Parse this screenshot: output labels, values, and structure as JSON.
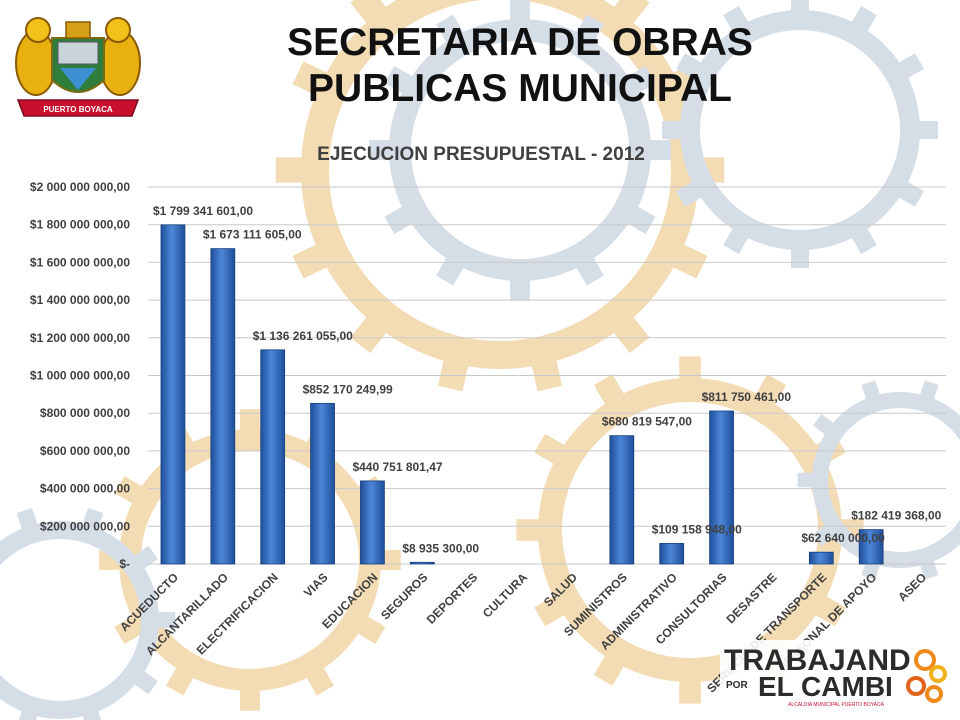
{
  "header": {
    "line1": "SECRETARIA DE OBRAS",
    "line2": "PUBLICAS MUNICIPAL"
  },
  "crest": {
    "ribbon_text": "PUERTO BOYACA"
  },
  "brand": {
    "word1": "TRABAJAND",
    "word_por": "POR",
    "word2": "EL CAMBI",
    "subtitle": "ALCALDIA MUNICIPAL PUERTO BOYACA"
  },
  "colors": {
    "bar_dark": "#1f4f99",
    "bar_light": "#4d86d8",
    "title_color": "#404040",
    "gear_blue": "#d5dde7",
    "gear_orange": "#f3dcb4"
  },
  "chart_data": {
    "type": "bar",
    "title": "EJECUCION PRESUPUESTAL - 2012",
    "ylim": [
      0,
      2000000000
    ],
    "grid": true,
    "y_ticks": [
      {
        "value": 0,
        "label": "$-"
      },
      {
        "value": 200000000,
        "label": "$200 000 000,00"
      },
      {
        "value": 400000000,
        "label": "$400 000 000,00"
      },
      {
        "value": 600000000,
        "label": "$600 000 000,00"
      },
      {
        "value": 800000000,
        "label": "$800 000 000,00"
      },
      {
        "value": 1000000000,
        "label": "$1 000 000 000,00"
      },
      {
        "value": 1200000000,
        "label": "$1 200 000 000,00"
      },
      {
        "value": 1400000000,
        "label": "$1 400 000 000,00"
      },
      {
        "value": 1600000000,
        "label": "$1 600 000 000,00"
      },
      {
        "value": 1800000000,
        "label": "$1 800 000 000,00"
      },
      {
        "value": 2000000000,
        "label": "$2 000 000 000,00"
      }
    ],
    "categories": [
      "ACUEDUCTO",
      "ALCANTARILLADO",
      "ELECTRIFICACION",
      "VIAS",
      "EDUCACION",
      "SEGUROS",
      "DEPORTES",
      "CULTURA",
      "SALUD",
      "SUMINISTROS",
      "ADMINISTRATIVO",
      "CONSULTORIAS",
      "DESASTRE",
      "SERVICIO DE TRANSPORTE",
      "PERSONAL DE APOYO",
      "ASEO"
    ],
    "values": [
      1799341601,
      1673111605,
      1136261055,
      852170249.99,
      440751801.47,
      8935300,
      null,
      null,
      null,
      680819547,
      109158948,
      811750461,
      null,
      62640000,
      182419368,
      null
    ],
    "data_labels": [
      "$1 799 341 601,00",
      "$1 673 111 605,00",
      "$1 136 261 055,00",
      "$852 170 249,99",
      "$440 751 801,47",
      "$8 935 300,00",
      "",
      "",
      "",
      "$680 819 547,00",
      "$109 158 948,00",
      "$811 750 461,00",
      "",
      "$62 640 000,00",
      "$182 419 368,00",
      ""
    ]
  }
}
